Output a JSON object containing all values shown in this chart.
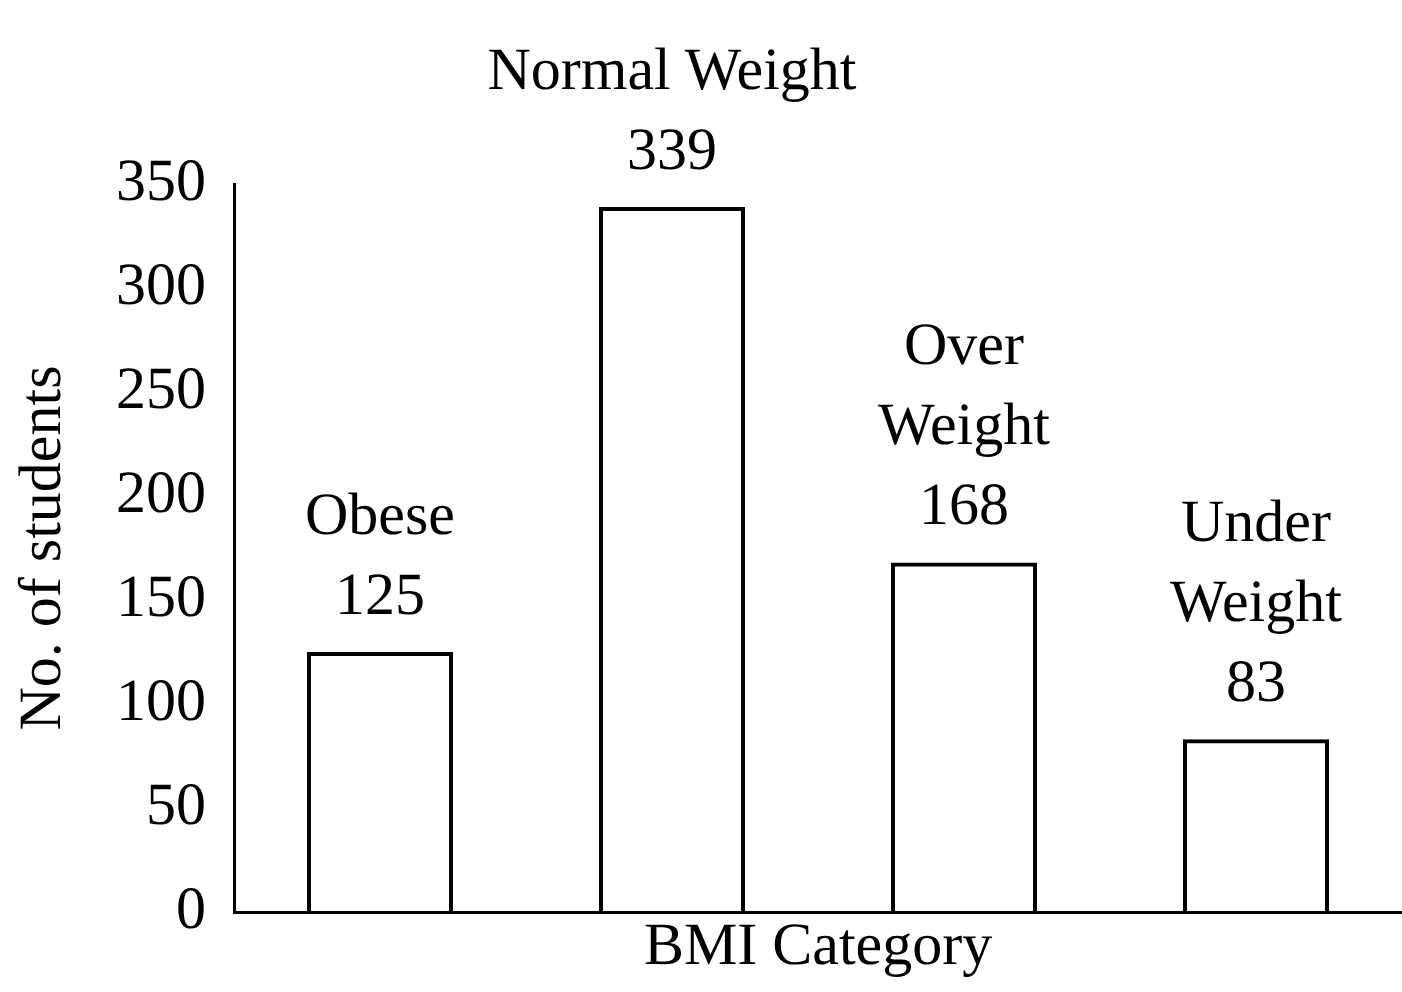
{
  "chart_data": {
    "type": "bar",
    "xlabel": "BMI Category",
    "ylabel": "No. of students",
    "categories": [
      "Obese",
      "Normal Weight",
      "Over Weight",
      "Under Weight"
    ],
    "values": [
      125,
      339,
      168,
      83
    ],
    "color": "#000000",
    "ylim": [
      0,
      350
    ],
    "yticks": [
      0,
      50,
      100,
      150,
      200,
      250,
      300,
      350
    ],
    "grid": false,
    "legend": false,
    "tick_labels": "y",
    "data_labels": true
  }
}
